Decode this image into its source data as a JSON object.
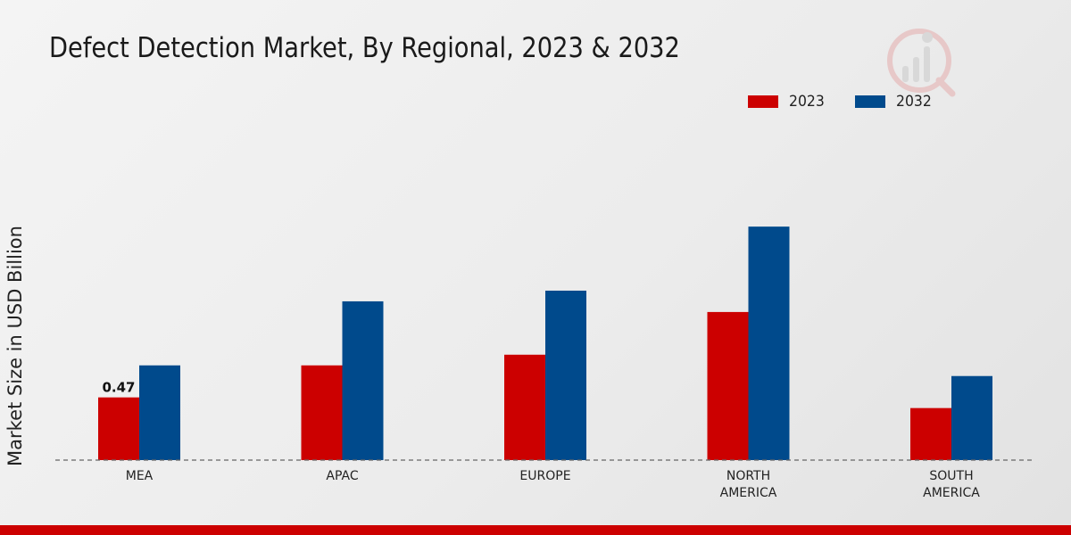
{
  "chart_data": {
    "type": "bar",
    "title": "Defect Detection Market, By Regional, 2023 & 2032",
    "xlabel": "",
    "ylabel": "Market Size in USD Billion",
    "categories": [
      "MEA",
      "APAC",
      "EUROPE",
      "NORTH\nAMERICA",
      "SOUTH\nAMERICA"
    ],
    "series": [
      {
        "name": "2023",
        "color": "#cc0000",
        "values": [
          0.47,
          0.71,
          0.79,
          1.11,
          0.39
        ]
      },
      {
        "name": "2032",
        "color": "#004a8c",
        "values": [
          0.71,
          1.19,
          1.27,
          1.75,
          0.63
        ]
      }
    ],
    "data_labels": [
      {
        "series": 0,
        "index": 0,
        "text": "0.47"
      }
    ],
    "ylim": [
      0,
      2.7
    ],
    "grid": false,
    "legend_position": "top-right"
  }
}
